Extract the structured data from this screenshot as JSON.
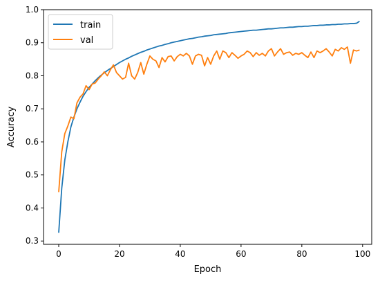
{
  "chart_data": {
    "type": "line",
    "xlabel": "Epoch",
    "ylabel": "Accuracy",
    "xlim": [
      -5,
      103
    ],
    "ylim": [
      0.29,
      1.0
    ],
    "xticks": [
      0,
      20,
      40,
      60,
      80,
      100
    ],
    "yticks": [
      0.3,
      0.4,
      0.5,
      0.6,
      0.7,
      0.8,
      0.9,
      1.0
    ],
    "xtick_labels": [
      "0",
      "20",
      "40",
      "60",
      "80",
      "100"
    ],
    "ytick_labels": [
      "0.3",
      "0.4",
      "0.5",
      "0.6",
      "0.7",
      "0.8",
      "0.9",
      "1.0"
    ],
    "grid": false,
    "legend_position": "top-left",
    "series": [
      {
        "name": "train",
        "color": "#1f77b4",
        "x": [
          0,
          1,
          2,
          3,
          4,
          5,
          6,
          7,
          8,
          9,
          10,
          11,
          12,
          13,
          14,
          15,
          16,
          17,
          18,
          19,
          20,
          21,
          22,
          23,
          24,
          25,
          26,
          27,
          28,
          29,
          30,
          31,
          32,
          33,
          34,
          35,
          36,
          37,
          38,
          39,
          40,
          41,
          42,
          43,
          44,
          45,
          46,
          47,
          48,
          49,
          50,
          51,
          52,
          53,
          54,
          55,
          56,
          57,
          58,
          59,
          60,
          61,
          62,
          63,
          64,
          65,
          66,
          67,
          68,
          69,
          70,
          71,
          72,
          73,
          74,
          75,
          76,
          77,
          78,
          79,
          80,
          81,
          82,
          83,
          84,
          85,
          86,
          87,
          88,
          89,
          90,
          91,
          92,
          93,
          94,
          95,
          96,
          97,
          98,
          99
        ],
        "values": [
          0.325,
          0.46,
          0.545,
          0.6,
          0.645,
          0.675,
          0.7,
          0.72,
          0.738,
          0.752,
          0.765,
          0.775,
          0.785,
          0.794,
          0.802,
          0.809,
          0.816,
          0.822,
          0.828,
          0.834,
          0.84,
          0.845,
          0.85,
          0.854,
          0.859,
          0.863,
          0.867,
          0.871,
          0.874,
          0.878,
          0.881,
          0.884,
          0.887,
          0.89,
          0.892,
          0.895,
          0.897,
          0.9,
          0.902,
          0.904,
          0.906,
          0.908,
          0.91,
          0.912,
          0.913,
          0.915,
          0.917,
          0.918,
          0.92,
          0.921,
          0.922,
          0.924,
          0.925,
          0.926,
          0.927,
          0.928,
          0.93,
          0.931,
          0.932,
          0.933,
          0.934,
          0.935,
          0.936,
          0.937,
          0.938,
          0.938,
          0.939,
          0.94,
          0.941,
          0.942,
          0.942,
          0.943,
          0.944,
          0.945,
          0.945,
          0.946,
          0.947,
          0.947,
          0.948,
          0.949,
          0.949,
          0.95,
          0.95,
          0.951,
          0.952,
          0.952,
          0.953,
          0.953,
          0.954,
          0.954,
          0.955,
          0.955,
          0.956,
          0.956,
          0.957,
          0.957,
          0.958,
          0.958,
          0.959,
          0.965
        ]
      },
      {
        "name": "val",
        "color": "#ff7f0e",
        "x": [
          0,
          1,
          2,
          3,
          4,
          5,
          6,
          7,
          8,
          9,
          10,
          11,
          12,
          13,
          14,
          15,
          16,
          17,
          18,
          19,
          20,
          21,
          22,
          23,
          24,
          25,
          26,
          27,
          28,
          29,
          30,
          31,
          32,
          33,
          34,
          35,
          36,
          37,
          38,
          39,
          40,
          41,
          42,
          43,
          44,
          45,
          46,
          47,
          48,
          49,
          50,
          51,
          52,
          53,
          54,
          55,
          56,
          57,
          58,
          59,
          60,
          61,
          62,
          63,
          64,
          65,
          66,
          67,
          68,
          69,
          70,
          71,
          72,
          73,
          74,
          75,
          76,
          77,
          78,
          79,
          80,
          81,
          82,
          83,
          84,
          85,
          86,
          87,
          88,
          89,
          90,
          91,
          92,
          93,
          94,
          95,
          96,
          97,
          98,
          99
        ],
        "values": [
          0.448,
          0.57,
          0.625,
          0.648,
          0.675,
          0.67,
          0.718,
          0.735,
          0.745,
          0.77,
          0.758,
          0.775,
          0.778,
          0.79,
          0.8,
          0.812,
          0.8,
          0.818,
          0.833,
          0.81,
          0.8,
          0.79,
          0.795,
          0.838,
          0.8,
          0.79,
          0.81,
          0.84,
          0.805,
          0.835,
          0.86,
          0.85,
          0.845,
          0.825,
          0.855,
          0.842,
          0.858,
          0.86,
          0.845,
          0.858,
          0.865,
          0.86,
          0.868,
          0.86,
          0.835,
          0.86,
          0.865,
          0.862,
          0.83,
          0.855,
          0.835,
          0.86,
          0.875,
          0.85,
          0.875,
          0.87,
          0.855,
          0.87,
          0.862,
          0.853,
          0.86,
          0.865,
          0.875,
          0.87,
          0.858,
          0.87,
          0.862,
          0.868,
          0.86,
          0.875,
          0.882,
          0.86,
          0.872,
          0.882,
          0.865,
          0.87,
          0.872,
          0.862,
          0.868,
          0.865,
          0.87,
          0.862,
          0.855,
          0.872,
          0.855,
          0.875,
          0.87,
          0.875,
          0.882,
          0.872,
          0.86,
          0.88,
          0.875,
          0.885,
          0.88,
          0.887,
          0.838,
          0.878,
          0.875,
          0.878
        ]
      }
    ]
  }
}
